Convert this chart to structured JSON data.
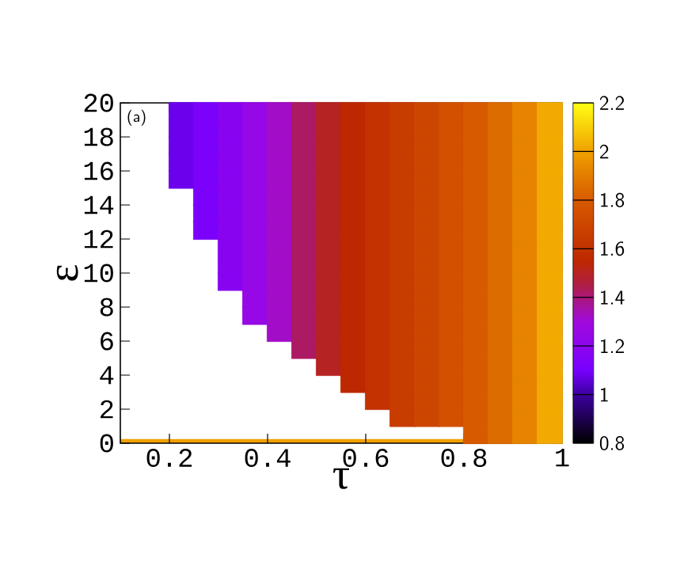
{
  "chart_data": {
    "type": "scatter",
    "marker": "square",
    "xlabel": "τ",
    "ylabel": "ε",
    "annotations": [
      "(a)"
    ],
    "xlim": [
      0.1,
      1
    ],
    "ylim": [
      0,
      20
    ],
    "xticks": [
      0.2,
      0.4,
      0.6,
      0.8,
      1
    ],
    "yticks": [
      0,
      2,
      4,
      6,
      8,
      10,
      12,
      14,
      16,
      18,
      20
    ],
    "clim": [
      0.8,
      2.2
    ],
    "cticks": [
      0.8,
      1,
      1.2,
      1.4,
      1.6,
      1.8,
      2,
      2.2
    ],
    "series": [
      {
        "type": "line",
        "marker": "none",
        "color": "#f0a000",
        "x": [
          0.1,
          1
        ],
        "values": [
          0.12,
          0.12
        ]
      },
      {
        "x": [
          0.225,
          0.225,
          0.225,
          0.225,
          0.225
        ],
        "values": [
          15.5,
          16.5,
          17.5,
          18.5,
          19.5
        ],
        "cvalues": [
          1.08,
          1.08,
          1.08,
          1.08,
          1.08
        ]
      },
      {
        "x": [
          0.275,
          0.275,
          0.275,
          0.275,
          0.275,
          0.275,
          0.275,
          0.275
        ],
        "values": [
          12.5,
          13.5,
          14.5,
          15.5,
          16.5,
          17.5,
          18.5,
          19.5
        ],
        "cvalues": [
          1.12,
          1.12,
          1.12,
          1.12,
          1.12,
          1.12,
          1.12,
          1.12
        ]
      },
      {
        "x": [
          0.325,
          0.325,
          0.325,
          0.325,
          0.325,
          0.325,
          0.325,
          0.325,
          0.325,
          0.325,
          0.325
        ],
        "values": [
          9.5,
          10.5,
          11.5,
          12.5,
          13.5,
          14.5,
          15.5,
          16.5,
          17.5,
          18.5,
          19.5
        ],
        "cvalues": [
          1.18,
          1.18,
          1.18,
          1.18,
          1.18,
          1.18,
          1.18,
          1.18,
          1.18,
          1.18,
          1.18
        ]
      },
      {
        "x": [
          0.375,
          0.375,
          0.375,
          0.375,
          0.375,
          0.375,
          0.375,
          0.375,
          0.375,
          0.375,
          0.375,
          0.375,
          0.375
        ],
        "values": [
          7.5,
          8.5,
          9.5,
          10.5,
          11.5,
          12.5,
          13.5,
          14.5,
          15.5,
          16.5,
          17.5,
          18.5,
          19.5
        ],
        "cvalues": [
          1.25,
          1.25,
          1.25,
          1.25,
          1.25,
          1.25,
          1.25,
          1.25,
          1.25,
          1.25,
          1.25,
          1.25,
          1.25
        ]
      },
      {
        "x": [
          0.425,
          0.425,
          0.425,
          0.425,
          0.425,
          0.425,
          0.425,
          0.425,
          0.425,
          0.425,
          0.425,
          0.425,
          0.425,
          0.425
        ],
        "values": [
          6.5,
          7.5,
          8.5,
          9.5,
          10.5,
          11.5,
          12.5,
          13.5,
          14.5,
          15.5,
          16.5,
          17.5,
          18.5,
          19.5
        ],
        "cvalues": [
          1.32,
          1.32,
          1.32,
          1.32,
          1.32,
          1.32,
          1.32,
          1.32,
          1.32,
          1.32,
          1.32,
          1.32,
          1.32,
          1.32
        ]
      },
      {
        "x": [
          0.475,
          0.475,
          0.475,
          0.475,
          0.475,
          0.475,
          0.475,
          0.475,
          0.475,
          0.475,
          0.475,
          0.475,
          0.475,
          0.475,
          0.475
        ],
        "values": [
          5.5,
          6.5,
          7.5,
          8.5,
          9.5,
          10.5,
          11.5,
          12.5,
          13.5,
          14.5,
          15.5,
          16.5,
          17.5,
          18.5,
          19.5
        ],
        "cvalues": [
          1.42,
          1.42,
          1.42,
          1.42,
          1.42,
          1.42,
          1.42,
          1.42,
          1.42,
          1.42,
          1.42,
          1.42,
          1.42,
          1.42,
          1.42
        ]
      },
      {
        "x": [
          0.525,
          0.525,
          0.525,
          0.525,
          0.525,
          0.525,
          0.525,
          0.525,
          0.525,
          0.525,
          0.525,
          0.525,
          0.525,
          0.525,
          0.525,
          0.525
        ],
        "values": [
          4.5,
          5.5,
          6.5,
          7.5,
          8.5,
          9.5,
          10.5,
          11.5,
          12.5,
          13.5,
          14.5,
          15.5,
          16.5,
          17.5,
          18.5,
          19.5
        ],
        "cvalues": [
          1.5,
          1.5,
          1.5,
          1.5,
          1.5,
          1.5,
          1.5,
          1.5,
          1.5,
          1.5,
          1.5,
          1.5,
          1.5,
          1.5,
          1.5,
          1.5
        ]
      },
      {
        "x": [
          0.575,
          0.575,
          0.575,
          0.575,
          0.575,
          0.575,
          0.575,
          0.575,
          0.575,
          0.575,
          0.575,
          0.575,
          0.575,
          0.575,
          0.575,
          0.575,
          0.575
        ],
        "values": [
          3.5,
          4.5,
          5.5,
          6.5,
          7.5,
          8.5,
          9.5,
          10.5,
          11.5,
          12.5,
          13.5,
          14.5,
          15.5,
          16.5,
          17.5,
          18.5,
          19.5
        ],
        "cvalues": [
          1.55,
          1.55,
          1.55,
          1.55,
          1.55,
          1.55,
          1.55,
          1.55,
          1.55,
          1.55,
          1.55,
          1.55,
          1.55,
          1.55,
          1.55,
          1.55,
          1.55
        ]
      },
      {
        "x": [
          0.625,
          0.625,
          0.625,
          0.625,
          0.625,
          0.625,
          0.625,
          0.625,
          0.625,
          0.625,
          0.625,
          0.625,
          0.625,
          0.625,
          0.625,
          0.625,
          0.625,
          0.625
        ],
        "values": [
          2.5,
          3.5,
          4.5,
          5.5,
          6.5,
          7.5,
          8.5,
          9.5,
          10.5,
          11.5,
          12.5,
          13.5,
          14.5,
          15.5,
          16.5,
          17.5,
          18.5,
          19.5
        ],
        "cvalues": [
          1.6,
          1.6,
          1.6,
          1.6,
          1.6,
          1.6,
          1.6,
          1.6,
          1.6,
          1.6,
          1.6,
          1.6,
          1.6,
          1.6,
          1.6,
          1.6,
          1.6,
          1.6
        ]
      },
      {
        "x": [
          0.675,
          0.675,
          0.675,
          0.675,
          0.675,
          0.675,
          0.675,
          0.675,
          0.675,
          0.675,
          0.675,
          0.675,
          0.675,
          0.675,
          0.675,
          0.675,
          0.675,
          0.675,
          0.675
        ],
        "values": [
          1.5,
          2.5,
          3.5,
          4.5,
          5.5,
          6.5,
          7.5,
          8.5,
          9.5,
          10.5,
          11.5,
          12.5,
          13.5,
          14.5,
          15.5,
          16.5,
          17.5,
          18.5,
          19.5
        ],
        "cvalues": [
          1.65,
          1.65,
          1.65,
          1.65,
          1.65,
          1.65,
          1.65,
          1.65,
          1.65,
          1.65,
          1.65,
          1.65,
          1.65,
          1.65,
          1.65,
          1.65,
          1.65,
          1.65,
          1.65
        ]
      },
      {
        "x": [
          0.725,
          0.725,
          0.725,
          0.725,
          0.725,
          0.725,
          0.725,
          0.725,
          0.725,
          0.725,
          0.725,
          0.725,
          0.725,
          0.725,
          0.725,
          0.725,
          0.725,
          0.725,
          0.725
        ],
        "values": [
          1.5,
          2.5,
          3.5,
          4.5,
          5.5,
          6.5,
          7.5,
          8.5,
          9.5,
          10.5,
          11.5,
          12.5,
          13.5,
          14.5,
          15.5,
          16.5,
          17.5,
          18.5,
          19.5
        ],
        "cvalues": [
          1.7,
          1.7,
          1.7,
          1.7,
          1.7,
          1.7,
          1.7,
          1.7,
          1.7,
          1.7,
          1.7,
          1.7,
          1.7,
          1.7,
          1.7,
          1.7,
          1.7,
          1.7,
          1.7
        ]
      },
      {
        "x": [
          0.775,
          0.775,
          0.775,
          0.775,
          0.775,
          0.775,
          0.775,
          0.775,
          0.775,
          0.775,
          0.775,
          0.775,
          0.775,
          0.775,
          0.775,
          0.775,
          0.775,
          0.775,
          0.775
        ],
        "values": [
          1.5,
          2.5,
          3.5,
          4.5,
          5.5,
          6.5,
          7.5,
          8.5,
          9.5,
          10.5,
          11.5,
          12.5,
          13.5,
          14.5,
          15.5,
          16.5,
          17.5,
          18.5,
          19.5
        ],
        "cvalues": [
          1.75,
          1.75,
          1.75,
          1.75,
          1.75,
          1.75,
          1.75,
          1.75,
          1.75,
          1.75,
          1.75,
          1.75,
          1.75,
          1.75,
          1.75,
          1.75,
          1.75,
          1.75,
          1.75
        ]
      },
      {
        "x": [
          0.825,
          0.825,
          0.825,
          0.825,
          0.825,
          0.825,
          0.825,
          0.825,
          0.825,
          0.825,
          0.825,
          0.825,
          0.825,
          0.825,
          0.825,
          0.825,
          0.825,
          0.825,
          0.825,
          0.825
        ],
        "values": [
          0.5,
          1.5,
          2.5,
          3.5,
          4.5,
          5.5,
          6.5,
          7.5,
          8.5,
          9.5,
          10.5,
          11.5,
          12.5,
          13.5,
          14.5,
          15.5,
          16.5,
          17.5,
          18.5,
          19.5
        ],
        "cvalues": [
          1.8,
          1.8,
          1.8,
          1.8,
          1.8,
          1.8,
          1.8,
          1.8,
          1.8,
          1.8,
          1.8,
          1.8,
          1.8,
          1.8,
          1.8,
          1.8,
          1.8,
          1.8,
          1.8,
          1.8
        ]
      },
      {
        "x": [
          0.875,
          0.875,
          0.875,
          0.875,
          0.875,
          0.875,
          0.875,
          0.875,
          0.875,
          0.875,
          0.875,
          0.875,
          0.875,
          0.875,
          0.875,
          0.875,
          0.875,
          0.875,
          0.875,
          0.875
        ],
        "values": [
          0.5,
          1.5,
          2.5,
          3.5,
          4.5,
          5.5,
          6.5,
          7.5,
          8.5,
          9.5,
          10.5,
          11.5,
          12.5,
          13.5,
          14.5,
          15.5,
          16.5,
          17.5,
          18.5,
          19.5
        ],
        "cvalues": [
          1.85,
          1.85,
          1.85,
          1.85,
          1.85,
          1.85,
          1.85,
          1.85,
          1.85,
          1.85,
          1.85,
          1.85,
          1.85,
          1.85,
          1.85,
          1.85,
          1.85,
          1.85,
          1.85,
          1.85
        ]
      },
      {
        "x": [
          0.925,
          0.925,
          0.925,
          0.925,
          0.925,
          0.925,
          0.925,
          0.925,
          0.925,
          0.925,
          0.925,
          0.925,
          0.925,
          0.925,
          0.925,
          0.925,
          0.925,
          0.925,
          0.925,
          0.925
        ],
        "values": [
          0.5,
          1.5,
          2.5,
          3.5,
          4.5,
          5.5,
          6.5,
          7.5,
          8.5,
          9.5,
          10.5,
          11.5,
          12.5,
          13.5,
          14.5,
          15.5,
          16.5,
          17.5,
          18.5,
          19.5
        ],
        "cvalues": [
          1.92,
          1.92,
          1.92,
          1.92,
          1.92,
          1.92,
          1.92,
          1.92,
          1.92,
          1.92,
          1.92,
          1.92,
          1.92,
          1.92,
          1.92,
          1.92,
          1.92,
          1.92,
          1.92,
          1.92
        ]
      },
      {
        "x": [
          0.975,
          0.975,
          0.975,
          0.975,
          0.975,
          0.975,
          0.975,
          0.975,
          0.975,
          0.975,
          0.975,
          0.975,
          0.975,
          0.975,
          0.975,
          0.975,
          0.975,
          0.975,
          0.975,
          0.975
        ],
        "values": [
          0.5,
          1.5,
          2.5,
          3.5,
          4.5,
          5.5,
          6.5,
          7.5,
          8.5,
          9.5,
          10.5,
          11.5,
          12.5,
          13.5,
          14.5,
          15.5,
          16.5,
          17.5,
          18.5,
          19.5
        ],
        "cvalues": [
          2.02,
          2.02,
          2.02,
          2.02,
          2.02,
          2.02,
          2.02,
          2.02,
          2.02,
          2.02,
          2.02,
          2.02,
          2.02,
          2.02,
          2.02,
          2.02,
          2.02,
          2.02,
          2.02,
          2.02
        ]
      }
    ]
  }
}
